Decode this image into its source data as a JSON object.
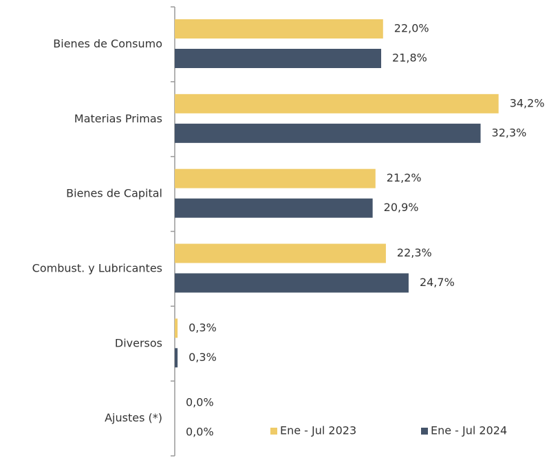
{
  "chart_data": {
    "type": "hbar",
    "categories": [
      "Bienes de Consumo",
      "Materias Primas",
      "Bienes de Capital",
      "Combust. y Lubricantes",
      "Diversos",
      "Ajustes (*)"
    ],
    "series": [
      {
        "name": "Ene - Jul 2023",
        "color": "#efcb68",
        "values": [
          22.0,
          34.2,
          21.2,
          22.3,
          0.3,
          0.0
        ],
        "value_labels": [
          "22,0%",
          "34,2%",
          "21,2%",
          "22,3%",
          "0,3%",
          "0,0%"
        ]
      },
      {
        "name": "Ene - Jul 2024",
        "color": "#44546a",
        "values": [
          21.8,
          32.3,
          20.9,
          24.7,
          0.3,
          0.0
        ],
        "value_labels": [
          "21,8%",
          "32,3%",
          "20,9%",
          "24,7%",
          "0,3%",
          "0,0%"
        ]
      }
    ],
    "xlim": [
      0,
      38
    ],
    "legend": "bottom-right"
  }
}
